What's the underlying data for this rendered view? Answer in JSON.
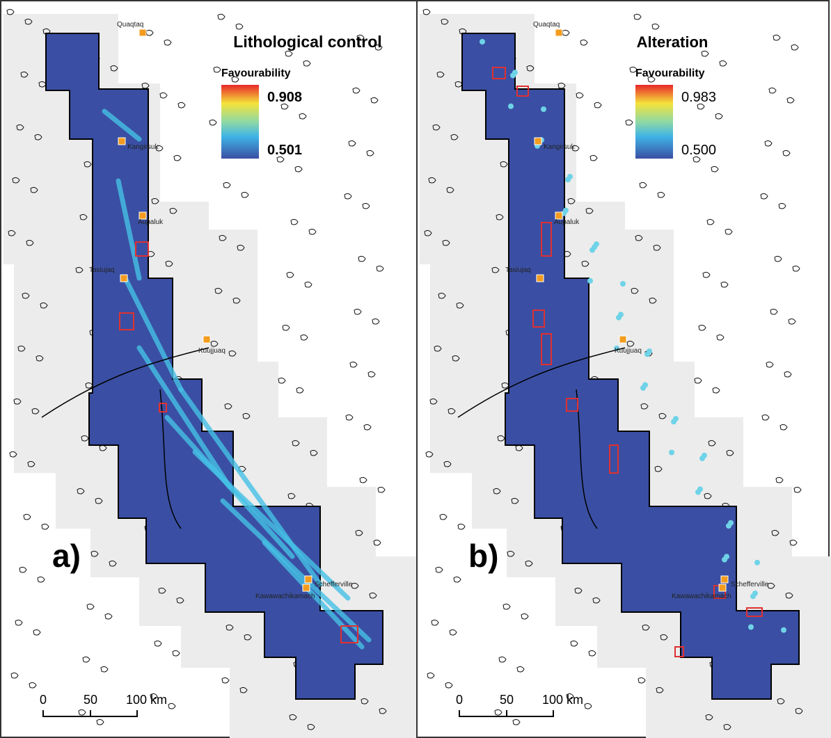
{
  "panels": [
    {
      "title": "Lithological control",
      "legend": {
        "label": "Favourability",
        "max": "0.908",
        "min": "0.501"
      },
      "towns": [
        "Quaqtaq",
        "Kangirsuk",
        "Aupaluk",
        "Tasiujaq",
        "Kuujjuaq",
        "Schefferville",
        "Kawawachikamach"
      ],
      "panel_label": "a)",
      "scale_bar": [
        "0",
        "50",
        "100 km"
      ]
    },
    {
      "title": "Alteration",
      "legend": {
        "label": "Favourability",
        "max": "0.983",
        "min": "0.500"
      },
      "towns": [
        "Quaqtaq",
        "Kangirsuk",
        "Aupaluk",
        "Tasiujaq",
        "Kuujjuaq",
        "Schefferville",
        "Kawawachikamach"
      ],
      "panel_label": "b)",
      "scale_bar": [
        "0",
        "50",
        "100 km"
      ]
    }
  ]
}
